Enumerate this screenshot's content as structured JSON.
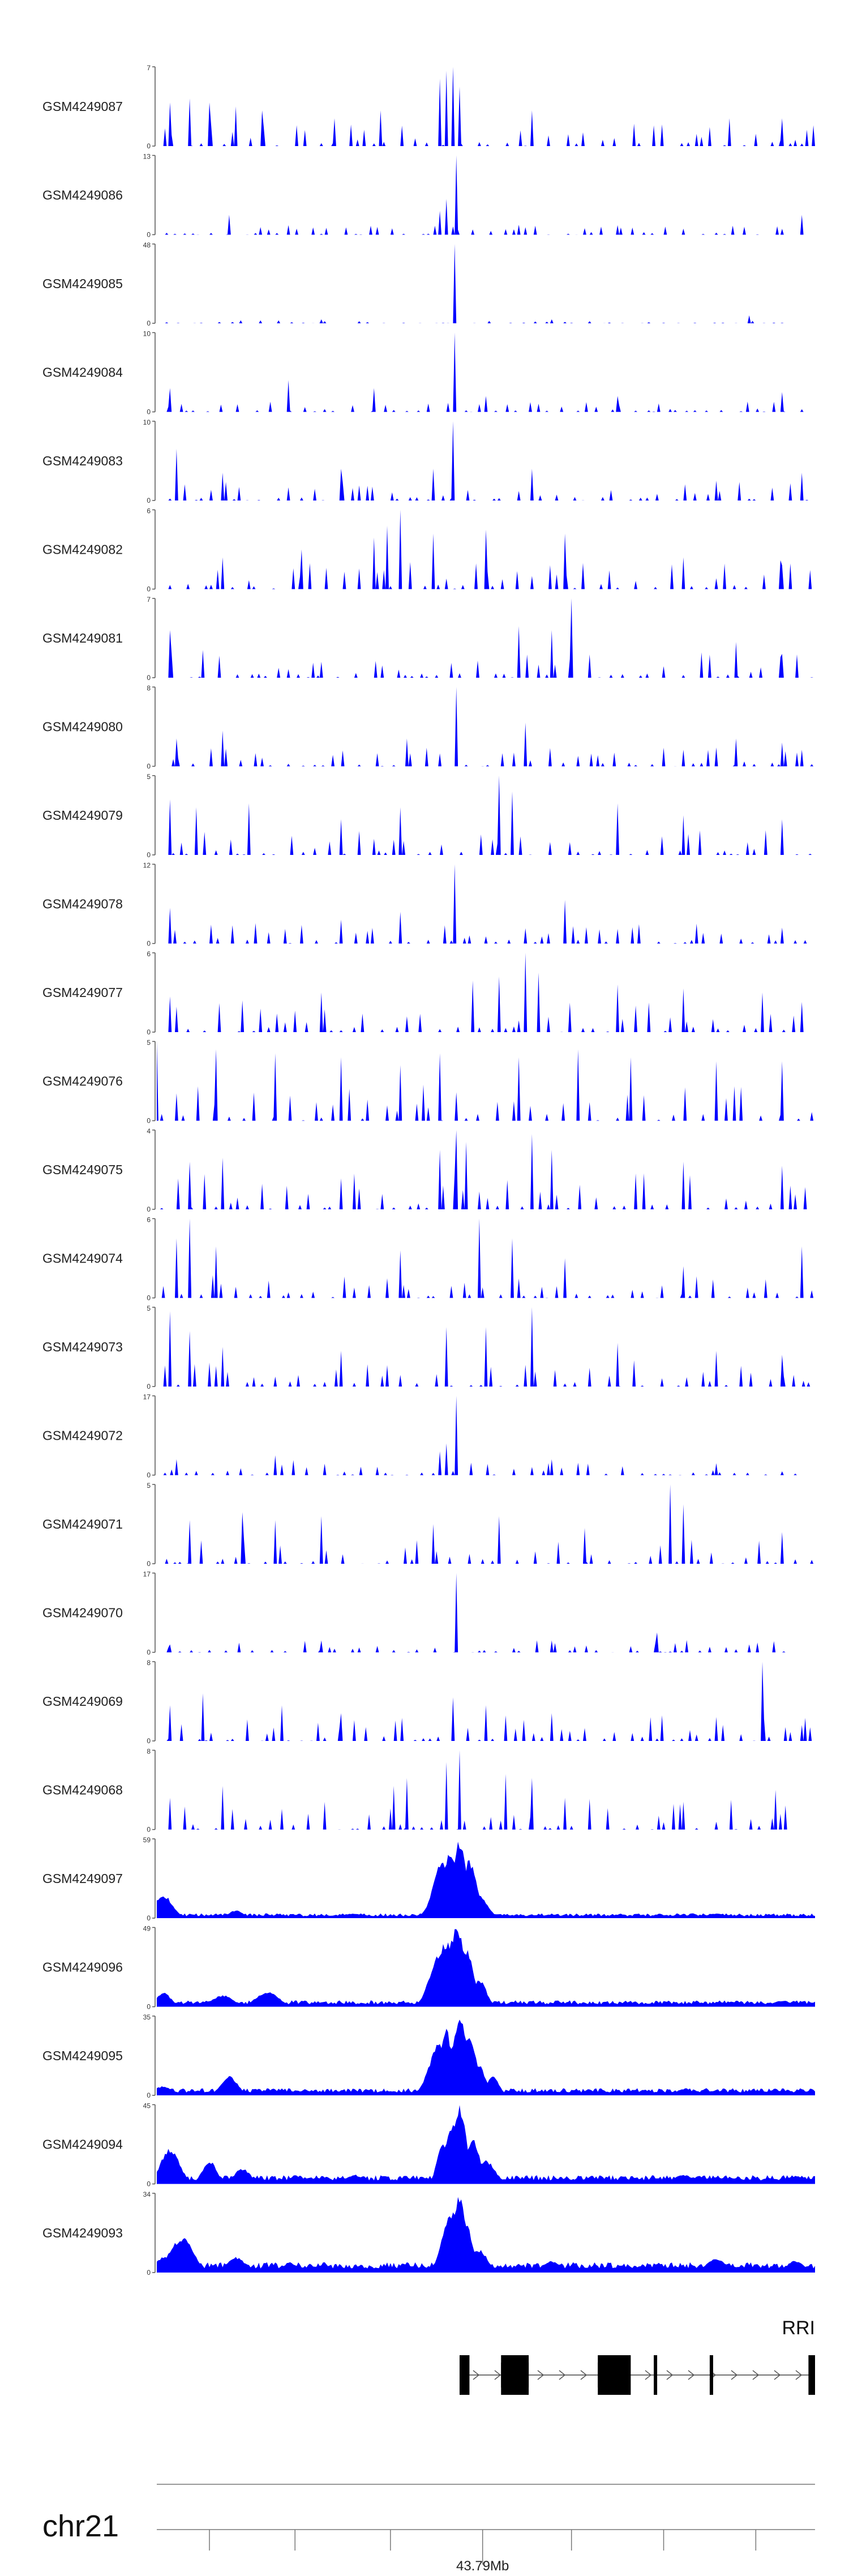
{
  "chart_data": {
    "type": "area",
    "fill_color": "#0000ff",
    "chromosome": "chr21",
    "gene": "RRI",
    "axis_tick_label": "43.79Mb",
    "tracks": [
      {
        "name": "GSM4249087",
        "ymax": "7",
        "ymin": "0",
        "style": "spiky",
        "peaks": [
          [
            0.45,
            1.0
          ],
          [
            0.44,
            0.95
          ],
          [
            0.43,
            0.85
          ],
          [
            0.46,
            0.75
          ],
          [
            0.02,
            0.55
          ],
          [
            0.05,
            0.6
          ],
          [
            0.08,
            0.55
          ],
          [
            0.12,
            0.5
          ],
          [
            0.16,
            0.45
          ],
          [
            0.27,
            0.35
          ],
          [
            0.34,
            0.45
          ],
          [
            0.57,
            0.45
          ],
          [
            0.87,
            0.35
          ],
          [
            0.95,
            0.35
          ]
        ],
        "density": 0.22
      },
      {
        "name": "GSM4249086",
        "ymax": "13",
        "ymin": "0",
        "style": "spiky",
        "peaks": [
          [
            0.455,
            1.0
          ],
          [
            0.44,
            0.45
          ],
          [
            0.43,
            0.3
          ],
          [
            0.11,
            0.25
          ],
          [
            0.98,
            0.25
          ],
          [
            0.2,
            0.12
          ],
          [
            0.7,
            0.12
          ]
        ],
        "density": 0.1
      },
      {
        "name": "GSM4249085",
        "ymax": "48",
        "ymin": "0",
        "style": "spiky",
        "peaks": [
          [
            0.452,
            1.0
          ],
          [
            0.9,
            0.1
          ],
          [
            0.25,
            0.05
          ],
          [
            0.6,
            0.05
          ]
        ],
        "density": 0.03,
        "end": 0.95
      },
      {
        "name": "GSM4249084",
        "ymax": "10",
        "ymin": "0",
        "style": "spiky",
        "peaks": [
          [
            0.452,
            1.0
          ],
          [
            0.2,
            0.4
          ],
          [
            0.33,
            0.3
          ],
          [
            0.95,
            0.25
          ],
          [
            0.02,
            0.3
          ],
          [
            0.5,
            0.2
          ],
          [
            0.7,
            0.2
          ]
        ],
        "density": 0.1
      },
      {
        "name": "GSM4249083",
        "ymax": "10",
        "ymin": "0",
        "style": "spiky",
        "peaks": [
          [
            0.45,
            1.0
          ],
          [
            0.42,
            0.4
          ],
          [
            0.03,
            0.65
          ],
          [
            0.1,
            0.35
          ],
          [
            0.28,
            0.4
          ],
          [
            0.57,
            0.4
          ],
          [
            0.85,
            0.25
          ],
          [
            0.98,
            0.35
          ]
        ],
        "density": 0.18
      },
      {
        "name": "GSM4249082",
        "ymax": "6",
        "ymin": "0",
        "style": "spiky",
        "peaks": [
          [
            0.37,
            1.0
          ],
          [
            0.35,
            0.8
          ],
          [
            0.33,
            0.65
          ],
          [
            0.42,
            0.7
          ],
          [
            0.5,
            0.75
          ],
          [
            0.62,
            0.7
          ],
          [
            0.22,
            0.5
          ],
          [
            0.1,
            0.4
          ],
          [
            0.8,
            0.4
          ],
          [
            0.95,
            0.3
          ]
        ],
        "density": 0.28
      },
      {
        "name": "GSM4249081",
        "ymax": "7",
        "ymin": "0",
        "style": "spiky",
        "peaks": [
          [
            0.63,
            1.0
          ],
          [
            0.55,
            0.65
          ],
          [
            0.6,
            0.6
          ],
          [
            0.02,
            0.6
          ],
          [
            0.07,
            0.35
          ],
          [
            0.88,
            0.45
          ],
          [
            0.95,
            0.3
          ],
          [
            0.25,
            0.2
          ]
        ],
        "density": 0.25
      },
      {
        "name": "GSM4249080",
        "ymax": "8",
        "ymin": "0",
        "style": "spiky",
        "peaks": [
          [
            0.455,
            1.0
          ],
          [
            0.56,
            0.55
          ],
          [
            0.03,
            0.35
          ],
          [
            0.1,
            0.45
          ],
          [
            0.38,
            0.35
          ],
          [
            0.88,
            0.35
          ],
          [
            0.95,
            0.3
          ]
        ],
        "density": 0.2
      },
      {
        "name": "GSM4249079",
        "ymax": "5",
        "ymin": "0",
        "style": "spiky",
        "peaks": [
          [
            0.52,
            1.0
          ],
          [
            0.54,
            0.8
          ],
          [
            0.02,
            0.7
          ],
          [
            0.14,
            0.65
          ],
          [
            0.06,
            0.6
          ],
          [
            0.37,
            0.6
          ],
          [
            0.7,
            0.65
          ],
          [
            0.8,
            0.5
          ],
          [
            0.95,
            0.45
          ],
          [
            0.28,
            0.45
          ]
        ],
        "density": 0.25
      },
      {
        "name": "GSM4249078",
        "ymax": "12",
        "ymin": "0",
        "style": "spiky",
        "peaks": [
          [
            0.452,
            1.0
          ],
          [
            0.62,
            0.55
          ],
          [
            0.37,
            0.4
          ],
          [
            0.02,
            0.45
          ],
          [
            0.28,
            0.3
          ],
          [
            0.82,
            0.25
          ],
          [
            0.95,
            0.2
          ]
        ],
        "density": 0.2
      },
      {
        "name": "GSM4249077",
        "ymax": "6",
        "ymin": "0",
        "style": "spiky",
        "peaks": [
          [
            0.56,
            1.0
          ],
          [
            0.52,
            0.7
          ],
          [
            0.58,
            0.75
          ],
          [
            0.48,
            0.65
          ],
          [
            0.13,
            0.4
          ],
          [
            0.25,
            0.5
          ],
          [
            0.7,
            0.6
          ],
          [
            0.8,
            0.55
          ],
          [
            0.92,
            0.5
          ],
          [
            0.02,
            0.45
          ]
        ],
        "density": 0.3
      },
      {
        "name": "GSM4249076",
        "ymax": "5",
        "ymin": "0",
        "style": "spiky",
        "peaks": [
          [
            0.0,
            1.0
          ],
          [
            0.64,
            0.9
          ],
          [
            0.09,
            0.9
          ],
          [
            0.18,
            0.85
          ],
          [
            0.28,
            0.8
          ],
          [
            0.43,
            0.85
          ],
          [
            0.55,
            0.8
          ],
          [
            0.72,
            0.8
          ],
          [
            0.85,
            0.75
          ],
          [
            0.95,
            0.75
          ],
          [
            0.37,
            0.7
          ]
        ],
        "density": 0.35
      },
      {
        "name": "GSM4249075",
        "ymax": "4",
        "ymin": "0",
        "style": "spiky",
        "peaks": [
          [
            0.455,
            1.0
          ],
          [
            0.57,
            0.95
          ],
          [
            0.47,
            0.85
          ],
          [
            0.43,
            0.75
          ],
          [
            0.6,
            0.75
          ],
          [
            0.05,
            0.6
          ],
          [
            0.1,
            0.65
          ],
          [
            0.8,
            0.6
          ],
          [
            0.95,
            0.55
          ],
          [
            0.3,
            0.45
          ]
        ],
        "density": 0.35
      },
      {
        "name": "GSM4249074",
        "ymax": "6",
        "ymin": "0",
        "style": "spiky",
        "peaks": [
          [
            0.05,
            1.0
          ],
          [
            0.49,
            1.0
          ],
          [
            0.03,
            0.75
          ],
          [
            0.09,
            0.65
          ],
          [
            0.54,
            0.75
          ],
          [
            0.37,
            0.6
          ],
          [
            0.98,
            0.65
          ],
          [
            0.62,
            0.5
          ],
          [
            0.8,
            0.4
          ]
        ],
        "density": 0.22
      },
      {
        "name": "GSM4249073",
        "ymax": "5",
        "ymin": "0",
        "style": "spiky",
        "peaks": [
          [
            0.02,
            0.95
          ],
          [
            0.57,
            1.0
          ],
          [
            0.44,
            0.75
          ],
          [
            0.5,
            0.75
          ],
          [
            0.05,
            0.7
          ],
          [
            0.1,
            0.5
          ],
          [
            0.28,
            0.45
          ],
          [
            0.7,
            0.55
          ],
          [
            0.85,
            0.45
          ],
          [
            0.95,
            0.4
          ]
        ],
        "density": 0.3
      },
      {
        "name": "GSM4249072",
        "ymax": "17",
        "ymin": "0",
        "style": "spiky",
        "peaks": [
          [
            0.455,
            1.0
          ],
          [
            0.44,
            0.4
          ],
          [
            0.43,
            0.3
          ],
          [
            0.18,
            0.25
          ],
          [
            0.03,
            0.2
          ],
          [
            0.6,
            0.2
          ],
          [
            0.85,
            0.15
          ]
        ],
        "density": 0.15,
        "end": 0.98
      },
      {
        "name": "GSM4249071",
        "ymax": "5",
        "ymin": "0",
        "style": "spiky",
        "peaks": [
          [
            0.78,
            1.0
          ],
          [
            0.8,
            0.75
          ],
          [
            0.52,
            0.6
          ],
          [
            0.13,
            0.65
          ],
          [
            0.18,
            0.55
          ],
          [
            0.25,
            0.6
          ],
          [
            0.05,
            0.55
          ],
          [
            0.42,
            0.5
          ],
          [
            0.65,
            0.45
          ],
          [
            0.95,
            0.4
          ]
        ],
        "density": 0.25
      },
      {
        "name": "GSM4249070",
        "ymax": "17",
        "ymin": "0",
        "style": "spiky",
        "peaks": [
          [
            0.455,
            1.0
          ],
          [
            0.76,
            0.25
          ],
          [
            0.02,
            0.1
          ],
          [
            0.25,
            0.15
          ],
          [
            0.6,
            0.15
          ],
          [
            0.9,
            0.1
          ]
        ],
        "density": 0.12,
        "end": 0.97
      },
      {
        "name": "GSM4249069",
        "ymax": "8",
        "ymin": "0",
        "style": "spiky",
        "peaks": [
          [
            0.92,
            1.0
          ],
          [
            0.07,
            0.6
          ],
          [
            0.02,
            0.45
          ],
          [
            0.19,
            0.45
          ],
          [
            0.45,
            0.55
          ],
          [
            0.5,
            0.45
          ],
          [
            0.28,
            0.35
          ],
          [
            0.6,
            0.35
          ],
          [
            0.75,
            0.3
          ],
          [
            0.98,
            0.2
          ]
        ],
        "density": 0.25
      },
      {
        "name": "GSM4249068",
        "ymax": "8",
        "ymin": "0",
        "style": "spiky",
        "peaks": [
          [
            0.46,
            1.0
          ],
          [
            0.44,
            0.85
          ],
          [
            0.36,
            0.55
          ],
          [
            0.38,
            0.65
          ],
          [
            0.53,
            0.7
          ],
          [
            0.57,
            0.65
          ],
          [
            0.1,
            0.55
          ],
          [
            0.02,
            0.4
          ],
          [
            0.94,
            0.5
          ],
          [
            0.62,
            0.4
          ],
          [
            0.8,
            0.35
          ]
        ],
        "density": 0.3,
        "end": 0.97
      },
      {
        "name": "GSM4249097",
        "ymax": "59",
        "ymin": "0",
        "style": "smooth",
        "peaks": [
          [
            0.46,
            1.0
          ],
          [
            0.445,
            0.85
          ],
          [
            0.435,
            0.75
          ],
          [
            0.475,
            0.75
          ],
          [
            0.49,
            0.3
          ],
          [
            0.01,
            0.3
          ],
          [
            0.12,
            0.1
          ],
          [
            0.3,
            0.06
          ],
          [
            0.6,
            0.05
          ],
          [
            0.85,
            0.06
          ]
        ],
        "density": 0.06
      },
      {
        "name": "GSM4249096",
        "ymax": "49",
        "ymin": "0",
        "style": "smooth",
        "peaks": [
          [
            0.455,
            1.0
          ],
          [
            0.44,
            0.85
          ],
          [
            0.43,
            0.7
          ],
          [
            0.47,
            0.75
          ],
          [
            0.49,
            0.35
          ],
          [
            0.01,
            0.18
          ],
          [
            0.1,
            0.15
          ],
          [
            0.16,
            0.15
          ],
          [
            0.17,
            0.2
          ],
          [
            0.95,
            0.08
          ]
        ],
        "density": 0.08
      },
      {
        "name": "GSM4249095",
        "ymax": "35",
        "ymin": "0",
        "style": "smooth",
        "peaks": [
          [
            0.46,
            1.0
          ],
          [
            0.44,
            0.85
          ],
          [
            0.43,
            0.7
          ],
          [
            0.475,
            0.75
          ],
          [
            0.49,
            0.4
          ],
          [
            0.51,
            0.25
          ],
          [
            0.01,
            0.12
          ],
          [
            0.11,
            0.25
          ],
          [
            0.8,
            0.08
          ],
          [
            0.95,
            0.06
          ]
        ],
        "density": 0.09
      },
      {
        "name": "GSM4249094",
        "ymax": "45",
        "ymin": "0",
        "style": "smooth",
        "peaks": [
          [
            0.46,
            1.0
          ],
          [
            0.45,
            0.75
          ],
          [
            0.435,
            0.55
          ],
          [
            0.48,
            0.6
          ],
          [
            0.5,
            0.3
          ],
          [
            0.02,
            0.45
          ],
          [
            0.08,
            0.3
          ],
          [
            0.13,
            0.2
          ],
          [
            0.3,
            0.12
          ],
          [
            0.8,
            0.12
          ],
          [
            0.97,
            0.1
          ]
        ],
        "density": 0.11
      },
      {
        "name": "GSM4249093",
        "ymax": "34",
        "ymin": "0",
        "style": "smooth",
        "peaks": [
          [
            0.46,
            1.0
          ],
          [
            0.45,
            0.8
          ],
          [
            0.44,
            0.6
          ],
          [
            0.47,
            0.65
          ],
          [
            0.49,
            0.3
          ],
          [
            0.03,
            0.4
          ],
          [
            0.04,
            0.45
          ],
          [
            0.01,
            0.2
          ],
          [
            0.12,
            0.2
          ],
          [
            0.6,
            0.15
          ],
          [
            0.85,
            0.18
          ],
          [
            0.97,
            0.15
          ]
        ],
        "density": 0.13
      }
    ],
    "gene_model": {
      "strand": "+",
      "start": 0.46,
      "end": 1.0,
      "exons": [
        [
          0.46,
          0.475
        ],
        [
          0.523,
          0.565
        ],
        [
          0.67,
          0.72
        ],
        [
          0.755,
          0.76
        ],
        [
          0.84,
          0.845
        ],
        [
          0.99,
          1.0
        ]
      ],
      "thick_exons": [
        [
          0.523,
          0.565
        ],
        [
          0.67,
          0.715
        ]
      ]
    },
    "axis_ticks": [
      0.08,
      0.21,
      0.355,
      0.495,
      0.63,
      0.77,
      0.91
    ],
    "axis_labeled_tick": 0.495
  }
}
